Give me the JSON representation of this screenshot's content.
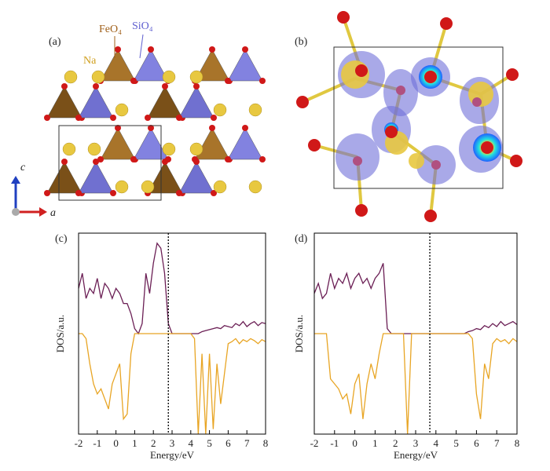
{
  "figure": {
    "panel_a": "(a)",
    "panel_b": "(b)",
    "feo4": "FeO₄",
    "sio4": "SiO₄",
    "na": "Na",
    "axis_c": "c",
    "axis_a": "a"
  },
  "chart_data": [
    {
      "type": "line",
      "title": "(c)",
      "xlabel": "Energy/eV",
      "ylabel": "DOS/a.u.",
      "xlim": [
        -2,
        8
      ],
      "ylim": [
        -1,
        1
      ],
      "xticks": [
        -2,
        -1,
        0,
        1,
        2,
        3,
        4,
        5,
        6,
        7,
        8
      ],
      "fermi_level": 2.8,
      "x": [
        -2,
        -1.8,
        -1.6,
        -1.4,
        -1.2,
        -1,
        -0.8,
        -0.6,
        -0.4,
        -0.2,
        0,
        0.2,
        0.4,
        0.6,
        0.8,
        1,
        1.2,
        1.4,
        1.6,
        1.8,
        2,
        2.2,
        2.4,
        2.6,
        2.8,
        3,
        3.2,
        3.4,
        3.6,
        3.8,
        4,
        4.2,
        4.4,
        4.6,
        4.8,
        5,
        5.2,
        5.4,
        5.6,
        5.8,
        6,
        6.2,
        6.4,
        6.6,
        6.8,
        7,
        7.2,
        7.4,
        7.6,
        7.8,
        8
      ],
      "series": [
        {
          "color": "#6b1f55",
          "values": [
            0.45,
            0.6,
            0.35,
            0.45,
            0.4,
            0.55,
            0.35,
            0.5,
            0.45,
            0.35,
            0.45,
            0.4,
            0.3,
            0.3,
            0.2,
            0.05,
            0,
            0.1,
            0.6,
            0.4,
            0.7,
            0.9,
            0.85,
            0.6,
            0.1,
            0,
            0,
            0,
            0,
            0,
            0,
            0,
            0,
            0.02,
            0.03,
            0.04,
            0.05,
            0.06,
            0.05,
            0.08,
            0.07,
            0.06,
            0.1,
            0.08,
            0.12,
            0.07,
            0.1,
            0.12,
            0.08,
            0.11,
            0.1
          ]
        },
        {
          "color": "#e8a524",
          "values": [
            0,
            0,
            -0.05,
            -0.3,
            -0.5,
            -0.6,
            -0.55,
            -0.65,
            -0.75,
            -0.5,
            -0.4,
            -0.3,
            -0.85,
            -0.8,
            -0.2,
            0,
            0,
            0,
            0,
            0,
            0,
            0,
            0,
            0,
            0,
            0,
            0,
            0,
            0,
            0,
            0,
            -0.05,
            -1,
            -0.2,
            -1,
            -0.2,
            -0.95,
            -0.3,
            -0.7,
            -0.4,
            -0.1,
            -0.08,
            -0.05,
            -0.1,
            -0.06,
            -0.08,
            -0.05,
            -0.07,
            -0.1,
            -0.06,
            -0.08
          ]
        }
      ]
    },
    {
      "type": "line",
      "title": "(d)",
      "xlabel": "Energy/eV",
      "ylabel": "DOS/a.u.",
      "xlim": [
        -2,
        8
      ],
      "ylim": [
        -1,
        1
      ],
      "xticks": [
        -2,
        -1,
        0,
        1,
        2,
        3,
        4,
        5,
        6,
        7,
        8
      ],
      "fermi_level": 3.7,
      "x": [
        -2,
        -1.8,
        -1.6,
        -1.4,
        -1.2,
        -1,
        -0.8,
        -0.6,
        -0.4,
        -0.2,
        0,
        0.2,
        0.4,
        0.6,
        0.8,
        1,
        1.2,
        1.4,
        1.6,
        1.8,
        2,
        2.2,
        2.4,
        2.6,
        2.8,
        3,
        3.2,
        3.4,
        3.6,
        3.8,
        4,
        4.2,
        4.4,
        4.6,
        4.8,
        5,
        5.2,
        5.4,
        5.6,
        5.8,
        6,
        6.2,
        6.4,
        6.6,
        6.8,
        7,
        7.2,
        7.4,
        7.6,
        7.8,
        8
      ],
      "series": [
        {
          "color": "#6b1f55",
          "values": [
            0.4,
            0.5,
            0.35,
            0.4,
            0.6,
            0.45,
            0.55,
            0.5,
            0.6,
            0.45,
            0.55,
            0.6,
            0.5,
            0.55,
            0.45,
            0.55,
            0.6,
            0.7,
            0.05,
            0,
            0,
            0,
            0,
            0,
            0,
            0,
            0,
            0,
            0,
            0,
            0,
            0,
            0,
            0,
            0,
            0,
            0,
            0,
            0.02,
            0.03,
            0.05,
            0.04,
            0.08,
            0.06,
            0.1,
            0.07,
            0.12,
            0.08,
            0.1,
            0.12,
            0.09
          ]
        },
        {
          "color": "#e8a524",
          "values": [
            0,
            0,
            0,
            0,
            -0.45,
            -0.5,
            -0.55,
            -0.65,
            -0.6,
            -0.8,
            -0.5,
            -0.4,
            -0.85,
            -0.5,
            -0.3,
            -0.45,
            -0.2,
            0,
            0,
            0,
            0,
            0,
            0,
            -1,
            0,
            0,
            0,
            0,
            0,
            0,
            0,
            0,
            0,
            0,
            0,
            0,
            0,
            0,
            0,
            -0.05,
            -0.6,
            -0.85,
            -0.3,
            -0.45,
            -0.1,
            -0.05,
            -0.08,
            -0.06,
            -0.1,
            -0.05,
            -0.08
          ]
        }
      ]
    }
  ]
}
